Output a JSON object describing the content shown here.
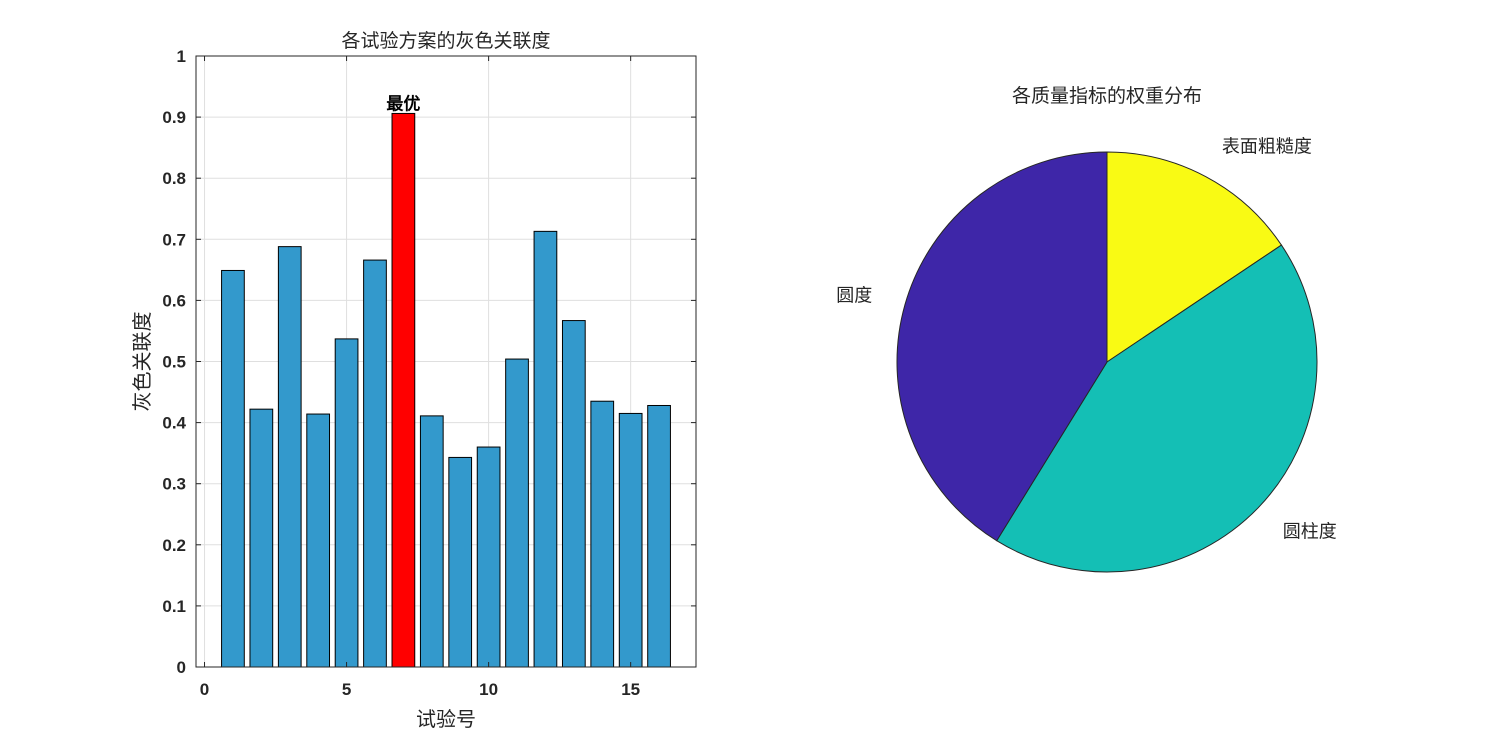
{
  "chart_data": [
    {
      "type": "bar",
      "title": "各试验方案的灰色关联度",
      "xlabel": "试验号",
      "ylabel": "灰色关联度",
      "x": [
        1,
        2,
        3,
        4,
        5,
        6,
        7,
        8,
        9,
        10,
        11,
        12,
        13,
        14,
        15,
        16
      ],
      "values": [
        0.649,
        0.422,
        0.688,
        0.414,
        0.537,
        0.666,
        0.906,
        0.411,
        0.343,
        0.36,
        0.504,
        0.713,
        0.567,
        0.435,
        0.415,
        0.428
      ],
      "xlim": [
        -0.3,
        17.3
      ],
      "ylim": [
        0,
        1
      ],
      "xticks": [
        0,
        5,
        10,
        15
      ],
      "yticks": [
        0,
        0.1,
        0.2,
        0.3,
        0.4,
        0.5,
        0.6,
        0.7,
        0.8,
        0.9,
        1
      ],
      "grid": true,
      "bar_color": "#3399cc",
      "highlight_index": 6,
      "highlight_color": "#ff0000",
      "annotation": {
        "text": "最优",
        "x": 7,
        "y": 0.906
      }
    },
    {
      "type": "pie",
      "title": "各质量指标的权重分布",
      "slices": [
        {
          "label": "表面粗糙度",
          "value": 0.156,
          "color": "#f9fa14"
        },
        {
          "label": "圆柱度",
          "value": 0.432,
          "color": "#14bfb5"
        },
        {
          "label": "圆度",
          "value": 0.412,
          "color": "#3e26a8"
        }
      ],
      "start": "top",
      "direction": "clockwise"
    }
  ]
}
